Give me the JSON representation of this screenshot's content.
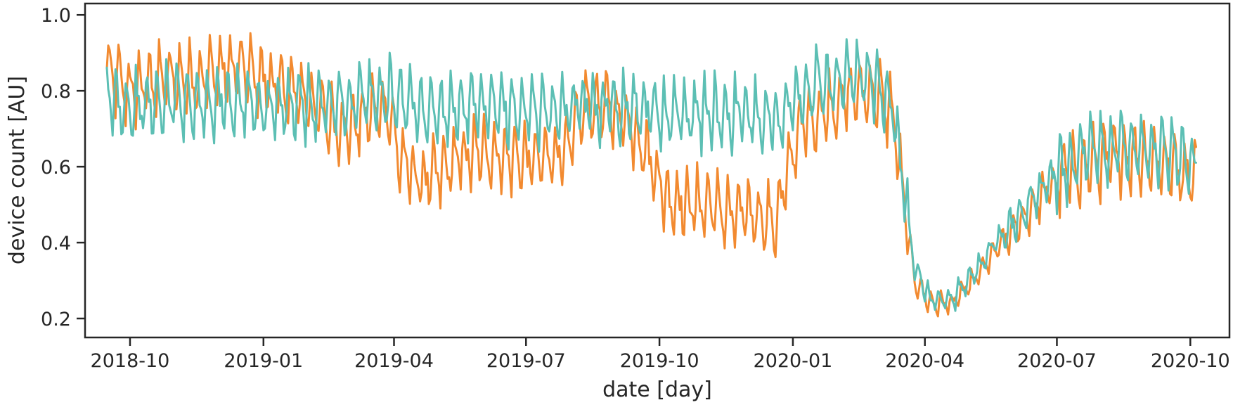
{
  "chart_data": {
    "type": "line",
    "title": "",
    "xlabel": "date [day]",
    "ylabel": "device count [AU]",
    "x_range": [
      "2018-08-31",
      "2020-10-28"
    ],
    "ylim": [
      0.15,
      1.03
    ],
    "grid": false,
    "legend": "none",
    "x_ticks": [
      {
        "date": "2018-10-01",
        "label": "2018-10"
      },
      {
        "date": "2019-01-01",
        "label": "2019-01"
      },
      {
        "date": "2019-04-01",
        "label": "2019-04"
      },
      {
        "date": "2019-07-01",
        "label": "2019-07"
      },
      {
        "date": "2019-10-01",
        "label": "2019-10"
      },
      {
        "date": "2020-01-01",
        "label": "2020-01"
      },
      {
        "date": "2020-04-01",
        "label": "2020-04"
      },
      {
        "date": "2020-07-01",
        "label": "2020-07"
      },
      {
        "date": "2020-10-01",
        "label": "2020-10"
      }
    ],
    "y_ticks": [
      0.2,
      0.4,
      0.6,
      0.8,
      1.0
    ],
    "y_tick_labels": [
      "0.2",
      "0.4",
      "0.6",
      "0.8",
      "1.0"
    ],
    "series": [
      {
        "color": "#f28a30",
        "points": [
          [
            "2018-09-15",
            0.85
          ],
          [
            "2018-10-01",
            0.8
          ],
          [
            "2018-10-15",
            0.82
          ],
          [
            "2018-11-01",
            0.83
          ],
          [
            "2018-11-15",
            0.83
          ],
          [
            "2018-12-01",
            0.85
          ],
          [
            "2018-12-15",
            0.86
          ],
          [
            "2019-01-01",
            0.83
          ],
          [
            "2019-01-15",
            0.8
          ],
          [
            "2019-02-01",
            0.78
          ],
          [
            "2019-02-15",
            0.72
          ],
          [
            "2019-03-01",
            0.7
          ],
          [
            "2019-03-15",
            0.74
          ],
          [
            "2019-03-28",
            0.76
          ],
          [
            "2019-04-05",
            0.62
          ],
          [
            "2019-04-20",
            0.56
          ],
          [
            "2019-05-01",
            0.58
          ],
          [
            "2019-05-15",
            0.62
          ],
          [
            "2019-06-01",
            0.64
          ],
          [
            "2019-06-15",
            0.63
          ],
          [
            "2019-07-01",
            0.62
          ],
          [
            "2019-07-15",
            0.62
          ],
          [
            "2019-08-01",
            0.66
          ],
          [
            "2019-08-10",
            0.76
          ],
          [
            "2019-08-25",
            0.76
          ],
          [
            "2019-09-10",
            0.72
          ],
          [
            "2019-09-25",
            0.62
          ],
          [
            "2019-10-05",
            0.52
          ],
          [
            "2019-10-20",
            0.5
          ],
          [
            "2019-11-05",
            0.5
          ],
          [
            "2019-11-20",
            0.47
          ],
          [
            "2019-12-05",
            0.48
          ],
          [
            "2019-12-20",
            0.45
          ],
          [
            "2020-01-05",
            0.7
          ],
          [
            "2020-01-20",
            0.74
          ],
          [
            "2020-02-05",
            0.78
          ],
          [
            "2020-02-20",
            0.8
          ],
          [
            "2020-03-01",
            0.78
          ],
          [
            "2020-03-10",
            0.74
          ],
          [
            "2020-03-16",
            0.55
          ],
          [
            "2020-03-25",
            0.3
          ],
          [
            "2020-04-05",
            0.24
          ],
          [
            "2020-04-20",
            0.24
          ],
          [
            "2020-05-05",
            0.3
          ],
          [
            "2020-05-20",
            0.38
          ],
          [
            "2020-06-05",
            0.45
          ],
          [
            "2020-06-20",
            0.52
          ],
          [
            "2020-07-05",
            0.58
          ],
          [
            "2020-07-20",
            0.6
          ],
          [
            "2020-08-05",
            0.62
          ],
          [
            "2020-08-20",
            0.63
          ],
          [
            "2020-09-05",
            0.62
          ],
          [
            "2020-09-20",
            0.6
          ],
          [
            "2020-10-05",
            0.58
          ]
        ]
      },
      {
        "color": "#5cbfb4",
        "points": [
          [
            "2018-09-15",
            0.78
          ],
          [
            "2018-10-01",
            0.76
          ],
          [
            "2018-10-15",
            0.76
          ],
          [
            "2018-11-01",
            0.78
          ],
          [
            "2018-11-15",
            0.77
          ],
          [
            "2018-12-01",
            0.77
          ],
          [
            "2018-12-15",
            0.77
          ],
          [
            "2019-01-01",
            0.76
          ],
          [
            "2019-01-15",
            0.76
          ],
          [
            "2019-02-01",
            0.76
          ],
          [
            "2019-02-15",
            0.76
          ],
          [
            "2019-03-01",
            0.77
          ],
          [
            "2019-03-15",
            0.78
          ],
          [
            "2019-03-28",
            0.79
          ],
          [
            "2019-04-05",
            0.78
          ],
          [
            "2019-04-20",
            0.75
          ],
          [
            "2019-05-01",
            0.75
          ],
          [
            "2019-05-15",
            0.76
          ],
          [
            "2019-06-01",
            0.75
          ],
          [
            "2019-06-15",
            0.75
          ],
          [
            "2019-07-01",
            0.75
          ],
          [
            "2019-07-15",
            0.75
          ],
          [
            "2019-08-01",
            0.75
          ],
          [
            "2019-08-10",
            0.76
          ],
          [
            "2019-08-25",
            0.76
          ],
          [
            "2019-09-10",
            0.76
          ],
          [
            "2019-09-25",
            0.75
          ],
          [
            "2019-10-05",
            0.74
          ],
          [
            "2019-10-20",
            0.74
          ],
          [
            "2019-11-05",
            0.74
          ],
          [
            "2019-11-20",
            0.74
          ],
          [
            "2019-12-05",
            0.74
          ],
          [
            "2019-12-20",
            0.72
          ],
          [
            "2020-01-05",
            0.78
          ],
          [
            "2020-01-20",
            0.82
          ],
          [
            "2020-02-05",
            0.82
          ],
          [
            "2020-02-20",
            0.84
          ],
          [
            "2020-03-01",
            0.82
          ],
          [
            "2020-03-10",
            0.76
          ],
          [
            "2020-03-16",
            0.58
          ],
          [
            "2020-03-25",
            0.34
          ],
          [
            "2020-04-05",
            0.25
          ],
          [
            "2020-04-20",
            0.25
          ],
          [
            "2020-05-05",
            0.32
          ],
          [
            "2020-05-20",
            0.4
          ],
          [
            "2020-06-05",
            0.47
          ],
          [
            "2020-06-20",
            0.54
          ],
          [
            "2020-07-05",
            0.6
          ],
          [
            "2020-07-20",
            0.63
          ],
          [
            "2020-08-05",
            0.65
          ],
          [
            "2020-08-20",
            0.66
          ],
          [
            "2020-09-05",
            0.65
          ],
          [
            "2020-09-20",
            0.63
          ],
          [
            "2020-10-05",
            0.61
          ]
        ]
      }
    ]
  }
}
